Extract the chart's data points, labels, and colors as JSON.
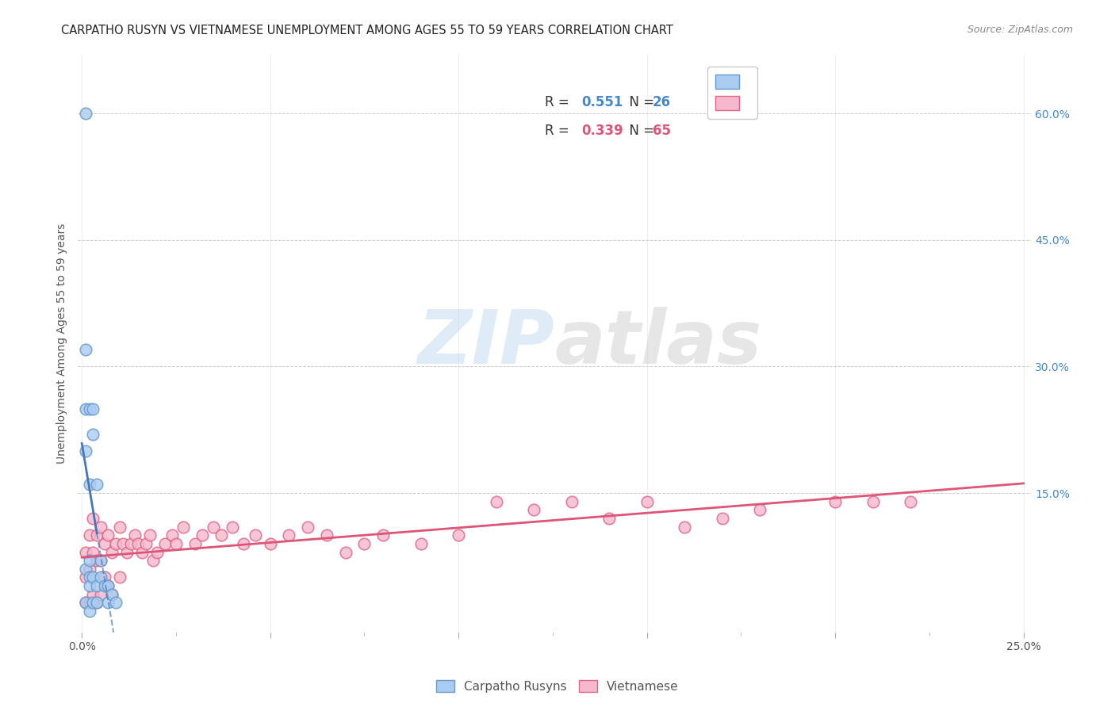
{
  "title": "CARPATHO RUSYN VS VIETNAMESE UNEMPLOYMENT AMONG AGES 55 TO 59 YEARS CORRELATION CHART",
  "source": "Source: ZipAtlas.com",
  "ylabel": "Unemployment Among Ages 55 to 59 years",
  "yticks_right": [
    "15.0%",
    "30.0%",
    "45.0%",
    "60.0%"
  ],
  "yticks_right_vals": [
    0.15,
    0.3,
    0.45,
    0.6
  ],
  "xmax": 0.25,
  "ymax": 0.65,
  "legend_blue_r": "0.551",
  "legend_blue_n": "26",
  "legend_pink_r": "0.339",
  "legend_pink_n": "65",
  "watermark_zip": "ZIP",
  "watermark_atlas": "atlas",
  "blue_color": "#aaccf0",
  "blue_edge_color": "#6699cc",
  "pink_color": "#f5b8cc",
  "pink_edge_color": "#dd6688",
  "blue_line_color": "#4477bb",
  "pink_line_color": "#dd5577",
  "blue_x": [
    0.001,
    0.001,
    0.001,
    0.001,
    0.001,
    0.002,
    0.002,
    0.002,
    0.002,
    0.002,
    0.002,
    0.003,
    0.003,
    0.003,
    0.003,
    0.004,
    0.004,
    0.004,
    0.005,
    0.005,
    0.006,
    0.007,
    0.007,
    0.008,
    0.009,
    0.001
  ],
  "blue_y": [
    0.6,
    0.25,
    0.2,
    0.06,
    0.02,
    0.25,
    0.16,
    0.07,
    0.05,
    0.04,
    0.01,
    0.25,
    0.22,
    0.05,
    0.02,
    0.16,
    0.04,
    0.02,
    0.07,
    0.05,
    0.04,
    0.04,
    0.02,
    0.03,
    0.02,
    0.32
  ],
  "pink_x": [
    0.001,
    0.001,
    0.001,
    0.002,
    0.002,
    0.002,
    0.003,
    0.003,
    0.003,
    0.004,
    0.004,
    0.004,
    0.005,
    0.005,
    0.005,
    0.006,
    0.006,
    0.007,
    0.007,
    0.008,
    0.008,
    0.009,
    0.01,
    0.01,
    0.011,
    0.012,
    0.013,
    0.014,
    0.015,
    0.016,
    0.017,
    0.018,
    0.019,
    0.02,
    0.022,
    0.024,
    0.025,
    0.027,
    0.03,
    0.032,
    0.035,
    0.037,
    0.04,
    0.043,
    0.046,
    0.05,
    0.055,
    0.06,
    0.065,
    0.07,
    0.075,
    0.08,
    0.09,
    0.1,
    0.11,
    0.12,
    0.13,
    0.14,
    0.15,
    0.16,
    0.17,
    0.18,
    0.2,
    0.21,
    0.22
  ],
  "pink_y": [
    0.08,
    0.05,
    0.02,
    0.1,
    0.06,
    0.02,
    0.12,
    0.08,
    0.03,
    0.1,
    0.07,
    0.02,
    0.11,
    0.07,
    0.03,
    0.09,
    0.05,
    0.1,
    0.04,
    0.08,
    0.03,
    0.09,
    0.11,
    0.05,
    0.09,
    0.08,
    0.09,
    0.1,
    0.09,
    0.08,
    0.09,
    0.1,
    0.07,
    0.08,
    0.09,
    0.1,
    0.09,
    0.11,
    0.09,
    0.1,
    0.11,
    0.1,
    0.11,
    0.09,
    0.1,
    0.09,
    0.1,
    0.11,
    0.1,
    0.08,
    0.09,
    0.1,
    0.09,
    0.1,
    0.14,
    0.13,
    0.14,
    0.12,
    0.14,
    0.11,
    0.12,
    0.13,
    0.14,
    0.14,
    0.14
  ],
  "title_fontsize": 10.5,
  "axis_label_fontsize": 10,
  "tick_fontsize": 10,
  "legend_fontsize": 12,
  "source_fontsize": 9
}
